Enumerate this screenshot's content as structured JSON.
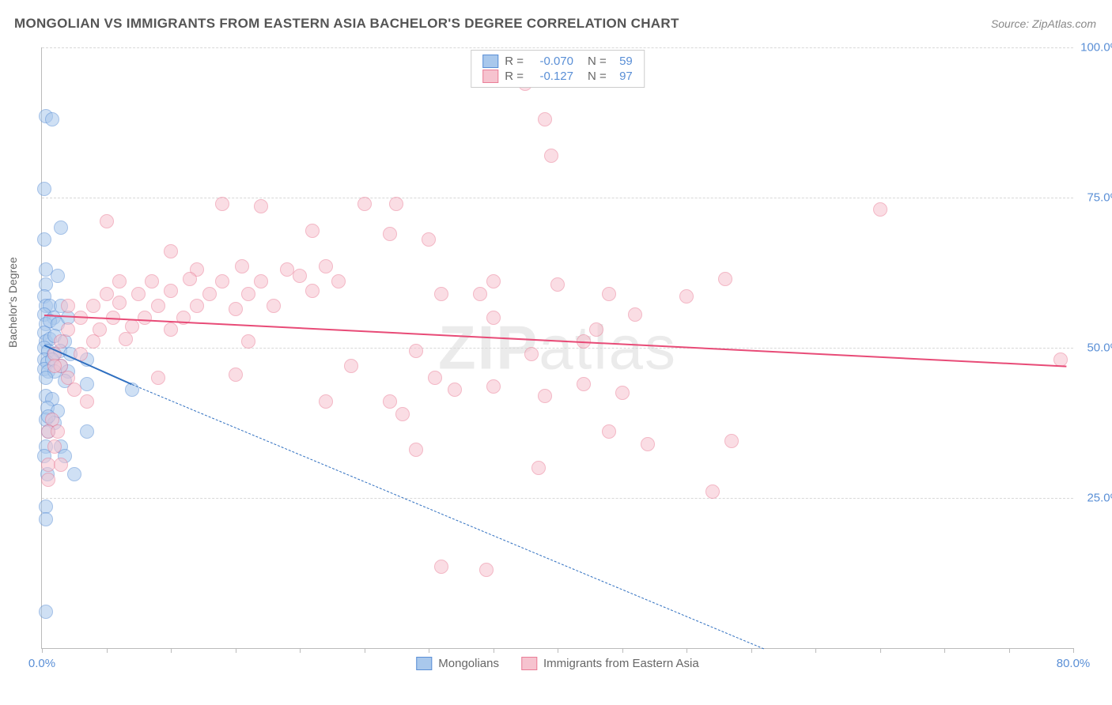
{
  "title": "MONGOLIAN VS IMMIGRANTS FROM EASTERN ASIA BACHELOR'S DEGREE CORRELATION CHART",
  "source": "Source: ZipAtlas.com",
  "ylabel": "Bachelor's Degree",
  "watermark": "ZIPatlas",
  "chart": {
    "type": "scatter",
    "xlim": [
      0,
      80
    ],
    "ylim": [
      0,
      100
    ],
    "xticks": [
      0,
      5,
      10,
      15,
      20,
      25,
      30,
      35,
      40,
      45,
      50,
      55,
      60,
      65,
      70,
      75,
      80
    ],
    "xtick_labels": {
      "0": "0.0%",
      "80": "80.0%"
    },
    "yticks": [
      25,
      50,
      75,
      100
    ],
    "ytick_labels": {
      "25": "25.0%",
      "50": "50.0%",
      "75": "75.0%",
      "100": "100.0%"
    },
    "grid_color": "#d8d8d8",
    "axis_color": "#bbbbbb",
    "tick_label_color": "#5a8fd6",
    "background_color": "#ffffff",
    "point_radius": 9,
    "point_opacity": 0.55,
    "series": [
      {
        "name": "Mongolians",
        "fill": "#a9c8ec",
        "stroke": "#5a8fd6",
        "R": "-0.070",
        "N": "59",
        "trend": {
          "solid_from": [
            0.2,
            50.5
          ],
          "solid_to": [
            7,
            44
          ],
          "dash_from": [
            7,
            44
          ],
          "dash_to": [
            56,
            0
          ],
          "color": "#2f6fc0",
          "width_solid": 2.5,
          "width_dash": 1.2
        },
        "points": [
          [
            0.3,
            88.5
          ],
          [
            0.8,
            88
          ],
          [
            0.2,
            76.5
          ],
          [
            1.5,
            70
          ],
          [
            0.2,
            68
          ],
          [
            0.3,
            63
          ],
          [
            1.2,
            62
          ],
          [
            0.3,
            60.5
          ],
          [
            0.2,
            58.5
          ],
          [
            0.3,
            57
          ],
          [
            0.6,
            57
          ],
          [
            1.5,
            57
          ],
          [
            0.2,
            55.5
          ],
          [
            0.9,
            55
          ],
          [
            0.3,
            54
          ],
          [
            0.6,
            54.5
          ],
          [
            1.2,
            54
          ],
          [
            2.0,
            55
          ],
          [
            0.2,
            52.5
          ],
          [
            0.3,
            51
          ],
          [
            0.6,
            51.5
          ],
          [
            1.0,
            52
          ],
          [
            1.8,
            51
          ],
          [
            0.2,
            50
          ],
          [
            0.5,
            49.5
          ],
          [
            0.9,
            49
          ],
          [
            1.4,
            49.5
          ],
          [
            2.2,
            49
          ],
          [
            0.2,
            48
          ],
          [
            0.4,
            47.5
          ],
          [
            0.8,
            48
          ],
          [
            1.5,
            47
          ],
          [
            3.5,
            48
          ],
          [
            0.2,
            46.5
          ],
          [
            0.5,
            46
          ],
          [
            1.0,
            46
          ],
          [
            2.0,
            46
          ],
          [
            0.3,
            45
          ],
          [
            1.8,
            44.5
          ],
          [
            3.5,
            44
          ],
          [
            7.0,
            43
          ],
          [
            0.3,
            42
          ],
          [
            0.8,
            41.5
          ],
          [
            0.4,
            40
          ],
          [
            1.2,
            39.5
          ],
          [
            0.3,
            38
          ],
          [
            1.0,
            37.5
          ],
          [
            0.5,
            36
          ],
          [
            3.5,
            36
          ],
          [
            0.3,
            33.5
          ],
          [
            1.5,
            33.5
          ],
          [
            0.2,
            32
          ],
          [
            1.8,
            32
          ],
          [
            0.4,
            29
          ],
          [
            2.5,
            29
          ],
          [
            0.3,
            23.5
          ],
          [
            0.3,
            21.5
          ],
          [
            0.3,
            6
          ],
          [
            0.5,
            38.5
          ]
        ]
      },
      {
        "name": "Immigrants from Eastern Asia",
        "fill": "#f6c3cf",
        "stroke": "#ea7d97",
        "R": "-0.127",
        "N": "97",
        "trend": {
          "solid_from": [
            0.2,
            55.5
          ],
          "solid_to": [
            79.5,
            47
          ],
          "color": "#e84b77",
          "width_solid": 2
        },
        "points": [
          [
            37.5,
            94
          ],
          [
            39,
            88
          ],
          [
            39.5,
            82
          ],
          [
            14,
            74
          ],
          [
            17,
            73.5
          ],
          [
            25,
            74
          ],
          [
            27.5,
            74
          ],
          [
            65,
            73
          ],
          [
            5,
            71
          ],
          [
            21,
            69.5
          ],
          [
            27,
            69
          ],
          [
            30,
            68
          ],
          [
            10,
            66
          ],
          [
            12,
            63
          ],
          [
            15.5,
            63.5
          ],
          [
            19,
            63
          ],
          [
            22,
            63.5
          ],
          [
            6,
            61
          ],
          [
            8.5,
            61
          ],
          [
            11.5,
            61.5
          ],
          [
            14,
            61
          ],
          [
            17,
            61
          ],
          [
            20,
            62
          ],
          [
            23,
            61
          ],
          [
            35,
            61
          ],
          [
            40,
            60.5
          ],
          [
            53,
            61.5
          ],
          [
            5,
            59
          ],
          [
            7.5,
            59
          ],
          [
            10,
            59.5
          ],
          [
            13,
            59
          ],
          [
            16,
            59
          ],
          [
            21,
            59.5
          ],
          [
            31,
            59
          ],
          [
            34,
            59
          ],
          [
            44,
            59
          ],
          [
            50,
            58.5
          ],
          [
            2,
            57
          ],
          [
            4,
            57
          ],
          [
            6,
            57.5
          ],
          [
            9,
            57
          ],
          [
            12,
            57
          ],
          [
            15,
            56.5
          ],
          [
            18,
            57
          ],
          [
            3,
            55
          ],
          [
            5.5,
            55
          ],
          [
            8,
            55
          ],
          [
            11,
            55
          ],
          [
            35,
            55
          ],
          [
            46,
            55.5
          ],
          [
            2,
            53
          ],
          [
            4.5,
            53
          ],
          [
            7,
            53.5
          ],
          [
            10,
            53
          ],
          [
            43,
            53
          ],
          [
            79,
            48
          ],
          [
            1.5,
            51
          ],
          [
            4,
            51
          ],
          [
            6.5,
            51.5
          ],
          [
            42,
            51
          ],
          [
            1,
            49
          ],
          [
            3,
            49
          ],
          [
            29,
            49.5
          ],
          [
            38,
            49
          ],
          [
            1.5,
            47
          ],
          [
            24,
            47
          ],
          [
            2,
            45
          ],
          [
            9,
            45
          ],
          [
            15,
            45.5
          ],
          [
            30.5,
            45
          ],
          [
            32,
            43
          ],
          [
            35,
            43.5
          ],
          [
            42,
            44
          ],
          [
            3.5,
            41
          ],
          [
            22,
            41
          ],
          [
            27,
            41
          ],
          [
            39,
            42
          ],
          [
            45,
            42.5
          ],
          [
            0.8,
            38
          ],
          [
            28,
            39
          ],
          [
            0.5,
            36
          ],
          [
            1.2,
            36
          ],
          [
            44,
            36
          ],
          [
            1,
            33.5
          ],
          [
            47,
            34
          ],
          [
            53.5,
            34.5
          ],
          [
            0.5,
            30.5
          ],
          [
            1.5,
            30.5
          ],
          [
            38.5,
            30
          ],
          [
            0.5,
            28
          ],
          [
            52,
            26
          ],
          [
            31,
            13.5
          ],
          [
            34.5,
            13
          ],
          [
            1,
            47
          ],
          [
            2.5,
            43
          ],
          [
            16,
            51
          ],
          [
            29,
            33
          ]
        ]
      }
    ]
  },
  "legend_bottom": [
    {
      "label": "Mongolians",
      "fill": "#a9c8ec",
      "stroke": "#5a8fd6"
    },
    {
      "label": "Immigrants from Eastern Asia",
      "fill": "#f6c3cf",
      "stroke": "#ea7d97"
    }
  ]
}
